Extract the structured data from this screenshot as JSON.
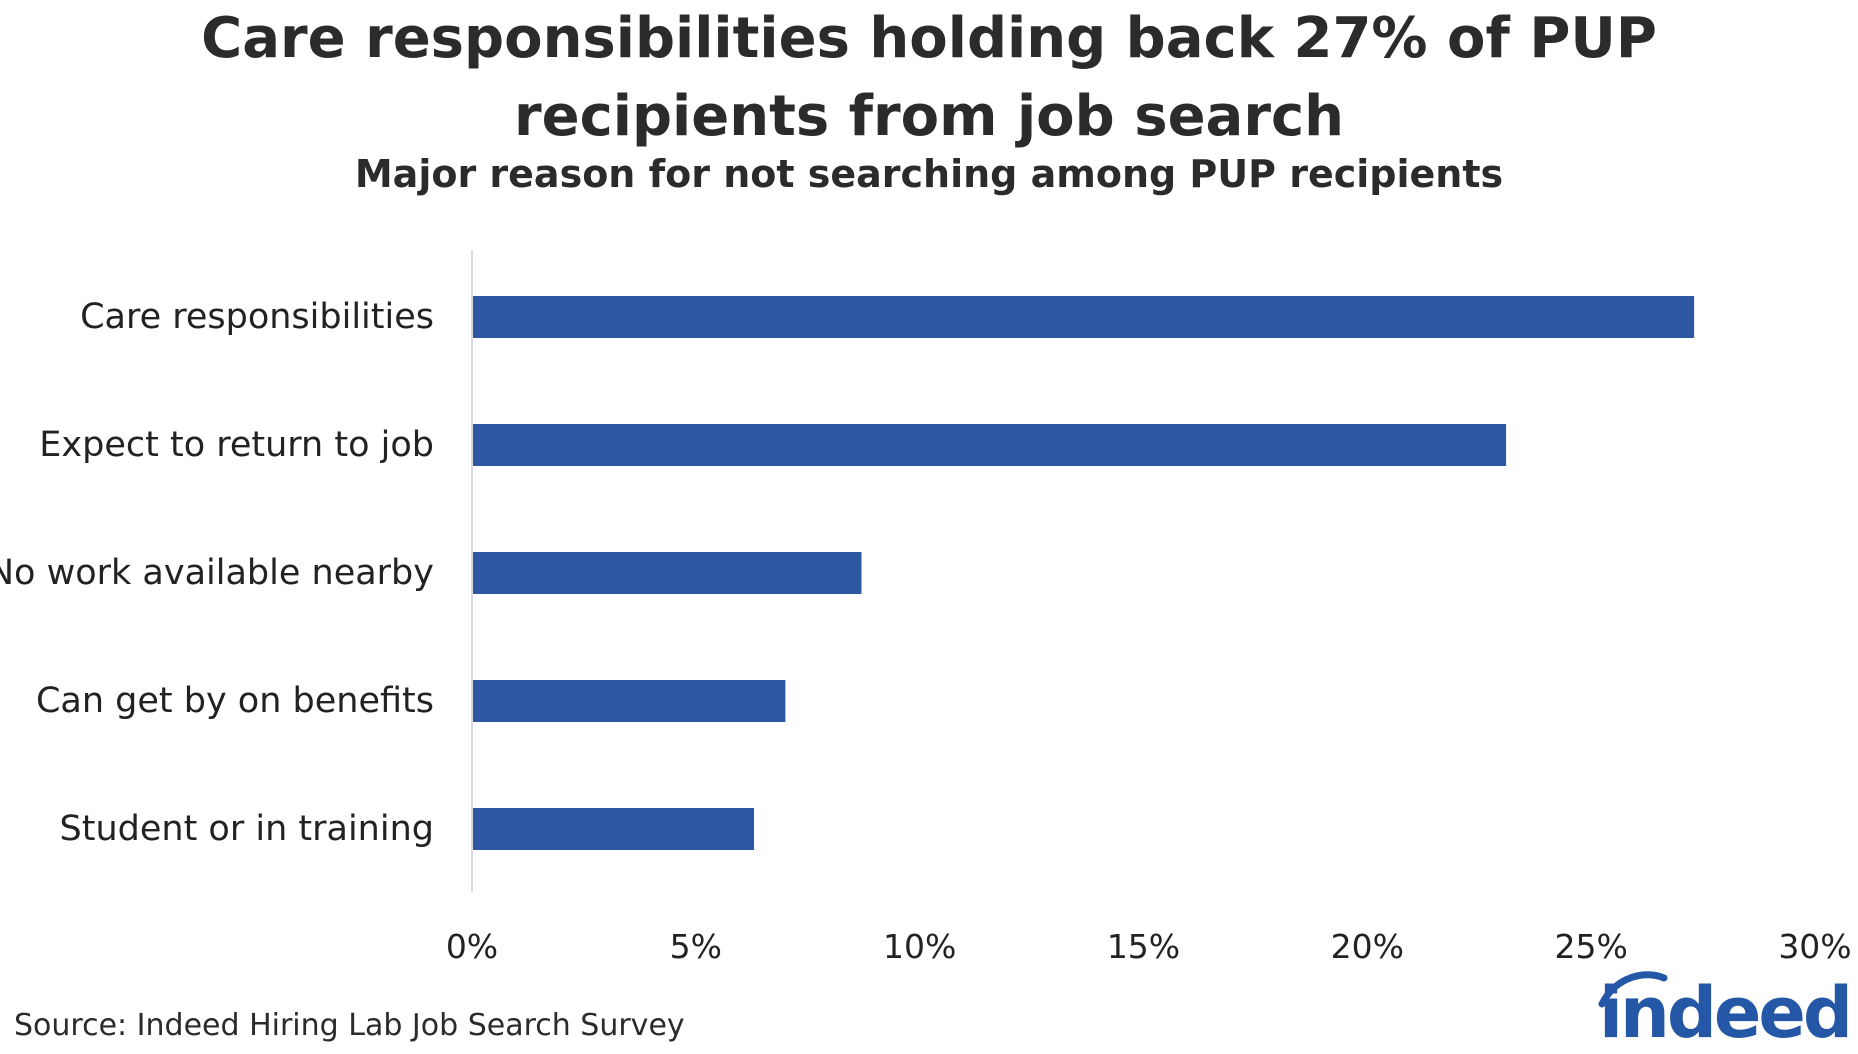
{
  "chart_data": {
    "type": "bar",
    "orientation": "horizontal",
    "title": "Care responsibilities holding back 27% of PUP recipients from job search",
    "title_lines": [
      "Care responsibilities holding back 27% of PUP",
      "recipients from job search"
    ],
    "subtitle": "Major reason for not searching among PUP recipients",
    "categories": [
      "Care responsibilities",
      "Expect to return to job",
      "No work available nearby",
      "Can get by on benefits",
      "Student or in training"
    ],
    "values": [
      27.3,
      23.1,
      8.7,
      7.0,
      6.3
    ],
    "xlim": [
      0,
      30
    ],
    "xticks": [
      0,
      5,
      10,
      15,
      20,
      25,
      30
    ],
    "xtick_labels": [
      "0%",
      "5%",
      "10%",
      "15%",
      "20%",
      "25%",
      "30%"
    ],
    "xlabel": "",
    "ylabel": "",
    "grid": false,
    "bar_color": "#2e57a1",
    "axis_color": "#d9d9d9",
    "source": "Source: Indeed Hiring Lab Job Search Survey"
  },
  "logo": {
    "text": "indeed",
    "color": "#2557a7"
  }
}
